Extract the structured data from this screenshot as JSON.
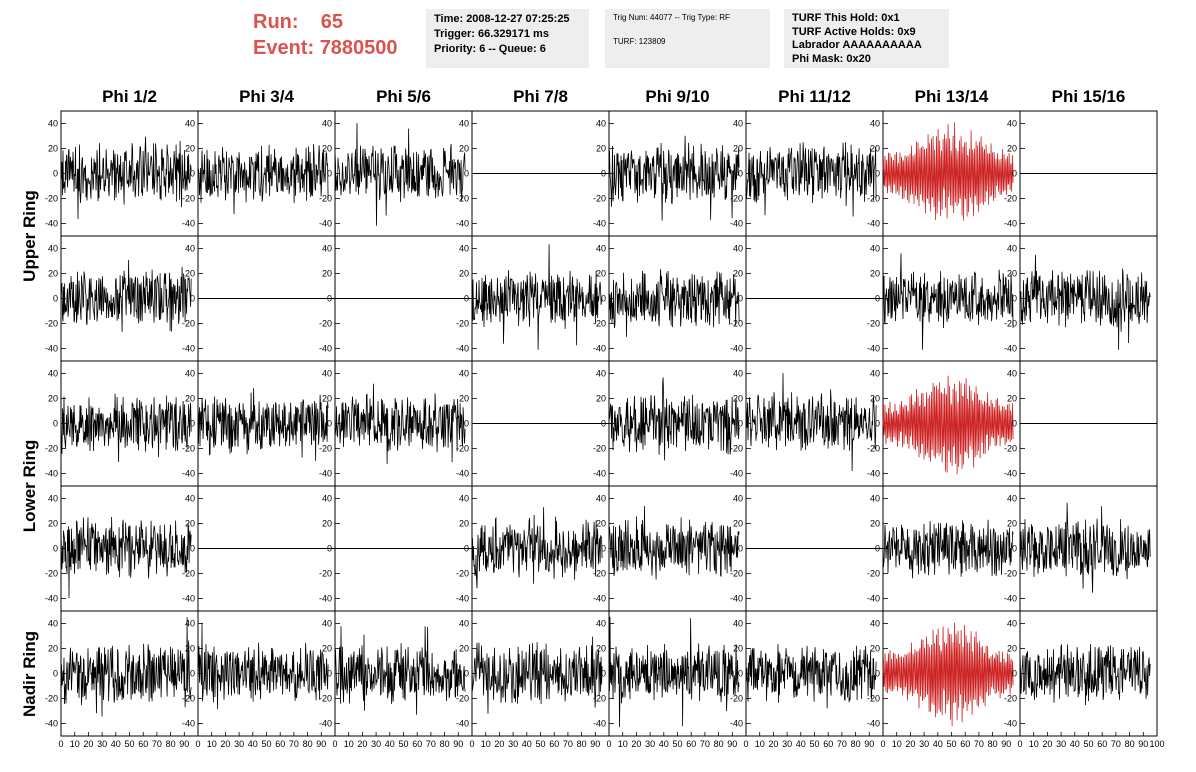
{
  "run": {
    "label": "Run:",
    "value": "65"
  },
  "event": {
    "label": "Event:",
    "value": "7880500"
  },
  "info_time": {
    "line1": "Time: 2008-12-27 07:25:25",
    "line2": "Trigger: 66.329171 ms",
    "line3": "Priority: 6 -- Queue: 6"
  },
  "info_trig": {
    "line1": "Trig Num: 44077 -- Trig Type: RF",
    "line2": "TURF: 123809"
  },
  "info_turf": {
    "line1": "TURF This Hold: 0x1",
    "line2": "TURF Active Holds: 0x9",
    "line3": "Labrador AAAAAAAAAA",
    "line4": "Phi Mask: 0x20"
  },
  "columns": [
    "Phi 1/2",
    "Phi 3/4",
    "Phi 5/6",
    "Phi 7/8",
    "Phi 9/10",
    "Phi 11/12",
    "Phi 13/14",
    "Phi 15/16"
  ],
  "rows": [
    "Upper Ring",
    "Lower Ring",
    "Nadir Ring"
  ],
  "colors": {
    "trace": "#000000",
    "highlight": "#cc2222",
    "frame": "#000000"
  },
  "chart_data": {
    "type": "line",
    "x_range": [
      0,
      100
    ],
    "y_range": [
      -50,
      50
    ],
    "y_ticks": [
      -40,
      -20,
      0,
      20,
      40
    ],
    "x_ticks": [
      0,
      10,
      20,
      30,
      40,
      50,
      60,
      70,
      80,
      90,
      100
    ],
    "x_tick_labels": [
      "0",
      "10",
      "20",
      "30",
      "40",
      "50",
      "60",
      "70",
      "80",
      "90",
      "100"
    ],
    "panel_rows": 5,
    "panel_cols": 8,
    "flat_panels": [
      [
        0,
        3
      ],
      [
        0,
        7
      ],
      [
        1,
        1
      ],
      [
        1,
        2
      ],
      [
        1,
        5
      ],
      [
        2,
        3
      ],
      [
        2,
        7
      ],
      [
        3,
        1
      ],
      [
        3,
        2
      ],
      [
        3,
        5
      ]
    ],
    "highlighted_panels": [
      [
        0,
        6
      ],
      [
        2,
        6
      ],
      [
        4,
        6
      ]
    ],
    "typical_amplitude": 20,
    "max_amplitude": 45
  }
}
